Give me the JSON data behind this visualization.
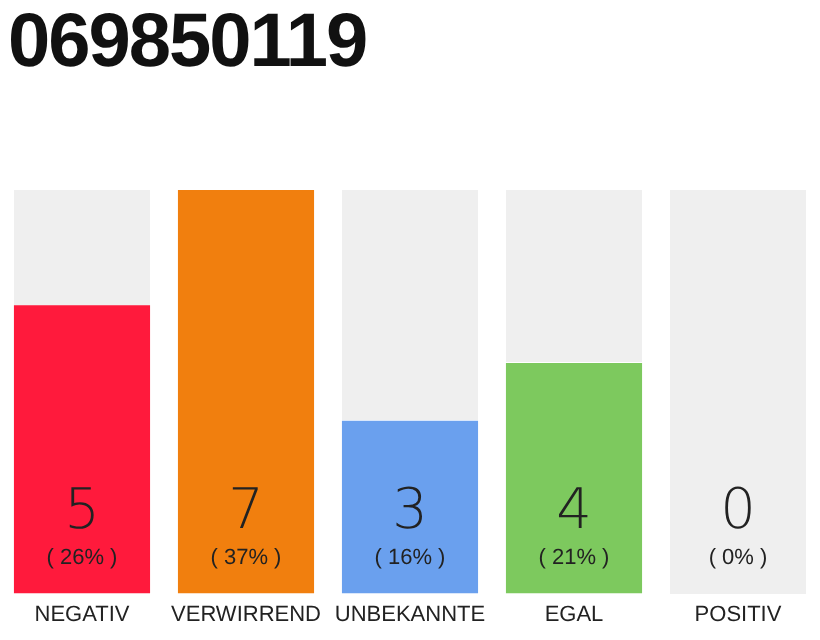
{
  "chart_data": {
    "type": "bar",
    "title": "069850119",
    "categories": [
      "NEGATIV",
      "VERWIRREND",
      "UNBEKANNTE",
      "EGAL",
      "POSITIV"
    ],
    "values": [
      5,
      7,
      3,
      4,
      0
    ],
    "colors": [
      "#ff1a3c",
      "#f17f0e",
      "#6aa0ee",
      "#7dc95e",
      "#cccccc"
    ],
    "data_labels": true,
    "annotations": [
      "( 26% )",
      "( 37% )",
      "( 16% )",
      "( 21% )",
      "( 0% )"
    ],
    "grid": false,
    "legend": false
  }
}
